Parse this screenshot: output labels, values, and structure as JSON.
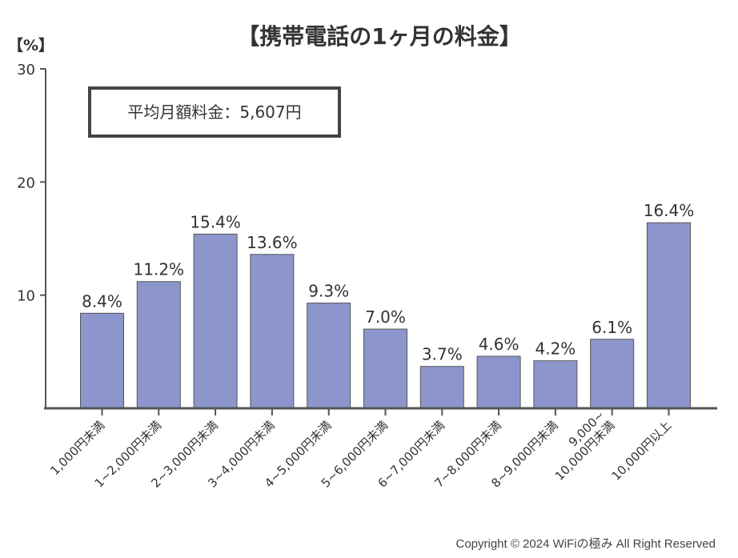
{
  "chart_data": {
    "type": "bar",
    "title": "【携帯電話の1ヶ月の料金】",
    "ylabel": "【%】",
    "xlabel": "",
    "ylim": [
      0,
      30
    ],
    "yticks": [
      10,
      20,
      30
    ],
    "categories": [
      "1,000円未満",
      "1~2,000円未満",
      "2~3,000円未満",
      "3~4,000円未満",
      "4~5,000円未満",
      "5~6,000円未満",
      "6~7,000円未満",
      "7~8,000円未満",
      "8~9,000円未満",
      "9,000~\n10,000円未満",
      "10,000円以上"
    ],
    "values": [
      8.4,
      11.2,
      15.4,
      13.6,
      9.3,
      7.0,
      3.7,
      4.6,
      4.2,
      6.1,
      16.4
    ],
    "value_labels": [
      "8.4%",
      "11.2%",
      "15.4%",
      "13.6%",
      "9.3%",
      "7.0%",
      "3.7%",
      "4.6%",
      "4.2%",
      "6.1%",
      "16.4%"
    ],
    "annotation": "平均月額料金：5,607円",
    "bar_color": "#8c96cc",
    "grid": false
  },
  "footer": {
    "copyright": "Copyright © 2024 WiFiの極み All Right Reserved"
  }
}
